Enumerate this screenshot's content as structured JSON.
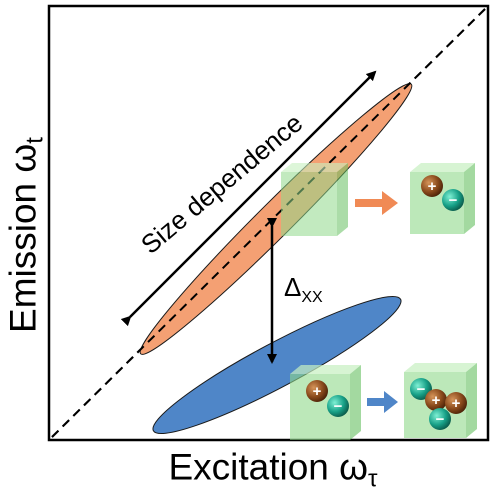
{
  "axes": {
    "y_label": "Emission",
    "y_symbol": "ω",
    "y_sub": "t",
    "x_label": "Excitation",
    "x_symbol": "ω",
    "x_sub": "τ"
  },
  "annotations": {
    "size_dependence": "Size dependence",
    "delta_symbol": "Δ",
    "delta_sub": "XX"
  },
  "colors": {
    "diagonal_peak": "#f4a073",
    "off_diagonal_peak": "#4f86c8",
    "nanocrystal_cube": "#8fd98a",
    "electron_sphere": "#8a4a1c",
    "hole_sphere": "#17a087",
    "transition_arrow": "#f08a55",
    "biexciton_arrow": "#4f86c8"
  },
  "icons": [
    "exciton-cube-icon",
    "biexciton-cube-icon",
    "particle-minus-icon",
    "particle-plus-icon"
  ],
  "particle_labels": {
    "minus": "−",
    "plus": "+"
  }
}
